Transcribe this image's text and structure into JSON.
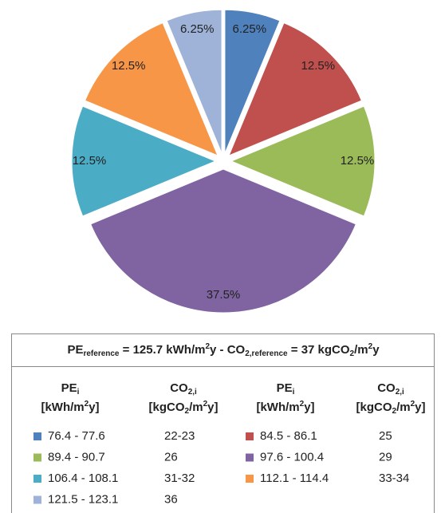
{
  "chart_data": {
    "type": "pie",
    "categories": [
      "76.4 - 77.6",
      "84.5 - 86.1",
      "89.4 - 90.7",
      "97.6 - 100.4",
      "106.4 - 108.1",
      "112.1 - 114.4",
      "121.5 - 123.1"
    ],
    "values": [
      6.25,
      12.5,
      12.5,
      37.5,
      12.5,
      12.5,
      6.25
    ],
    "value_labels": [
      "6.25%",
      "12.5%",
      "12.5%",
      "37.5%",
      "12.5%",
      "12.5%",
      "6.25%"
    ],
    "colors": [
      "#4f81bd",
      "#c0504d",
      "#9bbb59",
      "#8064a2",
      "#4bacc6",
      "#f79646",
      "#9fb3d9"
    ],
    "co2_values": [
      "22-23",
      "25",
      "26",
      "29",
      "31-32",
      "33-34",
      "36"
    ],
    "legend_table": {
      "title": [
        "PE",
        "reference",
        " = 125.7 kWh/m",
        "2",
        "y - CO",
        "2,reference",
        " = 37 kgCO",
        "2",
        "/m",
        "2",
        "y"
      ],
      "pe_header": [
        "PE",
        "i"
      ],
      "pe_unit": [
        "[kWh/m",
        "2",
        "y]"
      ],
      "co2_header": [
        "CO",
        "2,i"
      ],
      "co2_unit": [
        "[kgCO",
        "2",
        "/m",
        "2",
        "y]"
      ]
    }
  }
}
